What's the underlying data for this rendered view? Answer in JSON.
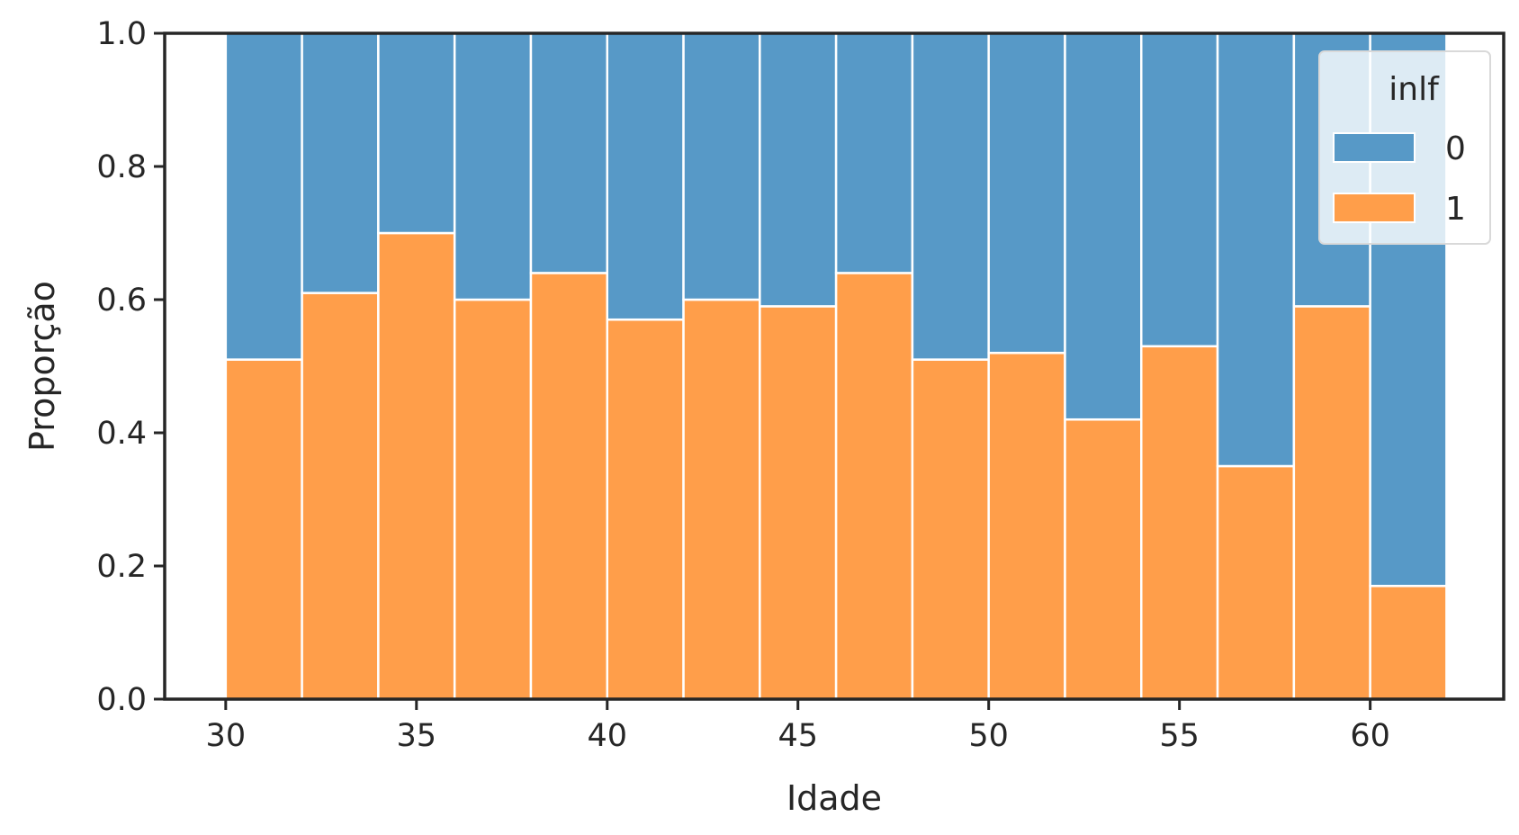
{
  "chart_data": {
    "type": "bar",
    "stacked": true,
    "normalized": true,
    "xlabel": "Idade",
    "ylabel": "Proporção",
    "xlim": [
      28.4,
      63.5
    ],
    "ylim": [
      0,
      1
    ],
    "xticks": [
      30,
      35,
      40,
      45,
      50,
      55,
      60
    ],
    "xtick_labels": [
      "30",
      "35",
      "40",
      "45",
      "50",
      "55",
      "60"
    ],
    "yticks": [
      0,
      0.2,
      0.4,
      0.6,
      0.8,
      1.0
    ],
    "ytick_labels": [
      "0.0",
      "0.2",
      "0.4",
      "0.6",
      "0.8",
      "1.0"
    ],
    "bin_edges": [
      30,
      32,
      34,
      36,
      38,
      40,
      42,
      44,
      46,
      48,
      50,
      52,
      54,
      56,
      58,
      60,
      62
    ],
    "series": [
      {
        "name": "0",
        "color": "#5799c7",
        "values": [
          0.49,
          0.39,
          0.3,
          0.4,
          0.36,
          0.43,
          0.4,
          0.41,
          0.36,
          0.49,
          0.48,
          0.58,
          0.47,
          0.65,
          0.41,
          0.83
        ]
      },
      {
        "name": "1",
        "color": "#ff9e4a",
        "values": [
          0.51,
          0.61,
          0.7,
          0.6,
          0.64,
          0.57,
          0.6,
          0.59,
          0.64,
          0.51,
          0.52,
          0.42,
          0.53,
          0.35,
          0.59,
          0.17
        ]
      }
    ],
    "legend": {
      "title": "inlf",
      "position": "top-right",
      "entries": [
        "0",
        "1"
      ]
    },
    "grid": false
  }
}
